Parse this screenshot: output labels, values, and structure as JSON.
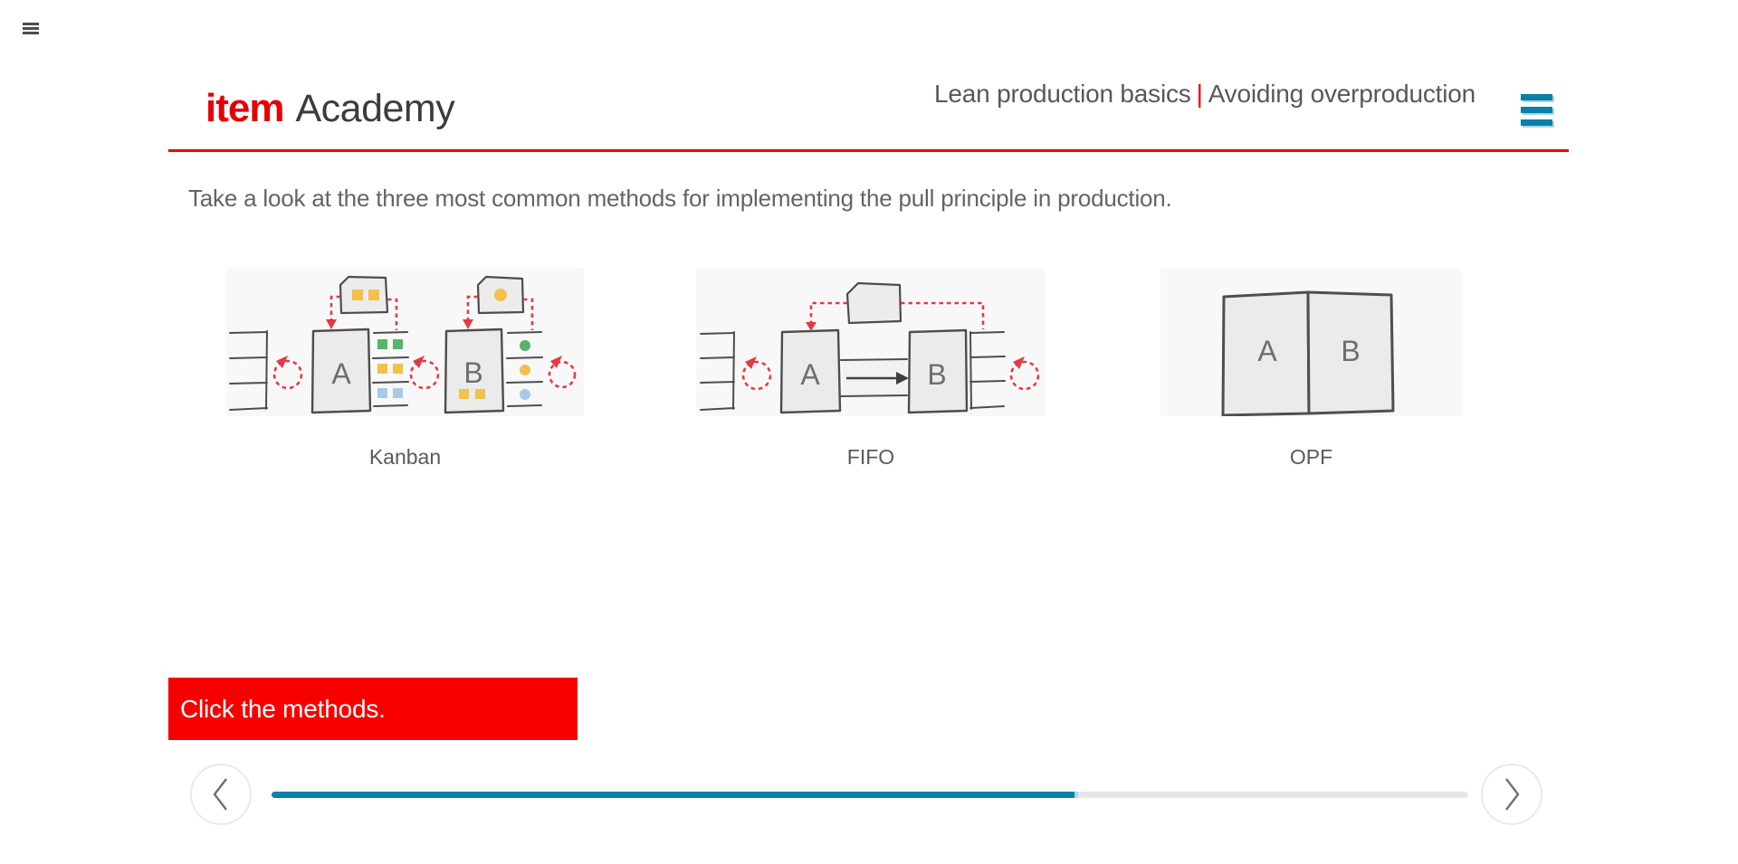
{
  "topbar": {
    "menu_icon": "hamburger-icon"
  },
  "header": {
    "logo": {
      "brand": "item",
      "product": "Academy",
      "brand_color": "#e60005"
    },
    "title": {
      "course": "Lean production basics",
      "separator": "|",
      "topic": "Avoiding overproduction"
    },
    "menu_icon": "hamburger-icon",
    "rule_color": "#f40000"
  },
  "main": {
    "instruction": "Take a look at the three most common methods for implementing the pull principle in production.",
    "methods": [
      {
        "id": "kanban",
        "label": "Kanban",
        "stations": [
          "A",
          "B"
        ]
      },
      {
        "id": "fifo",
        "label": "FIFO",
        "stations": [
          "A",
          "B"
        ]
      },
      {
        "id": "opf",
        "label": "OPF",
        "stations": [
          "A",
          "B"
        ]
      }
    ],
    "banner": {
      "text": "Click the methods.",
      "background": "#f70000",
      "text_color": "#ffffff"
    }
  },
  "footer": {
    "prev_icon": "chevron-left-icon",
    "next_icon": "chevron-right-icon",
    "progress": {
      "percent": 67.2,
      "fill_color": "#0c80a6",
      "track_color": "#e6e6e6"
    }
  },
  "colors": {
    "brand_red": "#e60005",
    "accent_red": "#f70000",
    "diagram_red": "#e43a42",
    "accent_blue": "#0c80a6",
    "accent_blue_light": "#a9d5e4",
    "text_gray": "#58585a",
    "token_green": "#57b46a",
    "token_yellow": "#f3c04b",
    "token_blue": "#a9c9e9"
  }
}
